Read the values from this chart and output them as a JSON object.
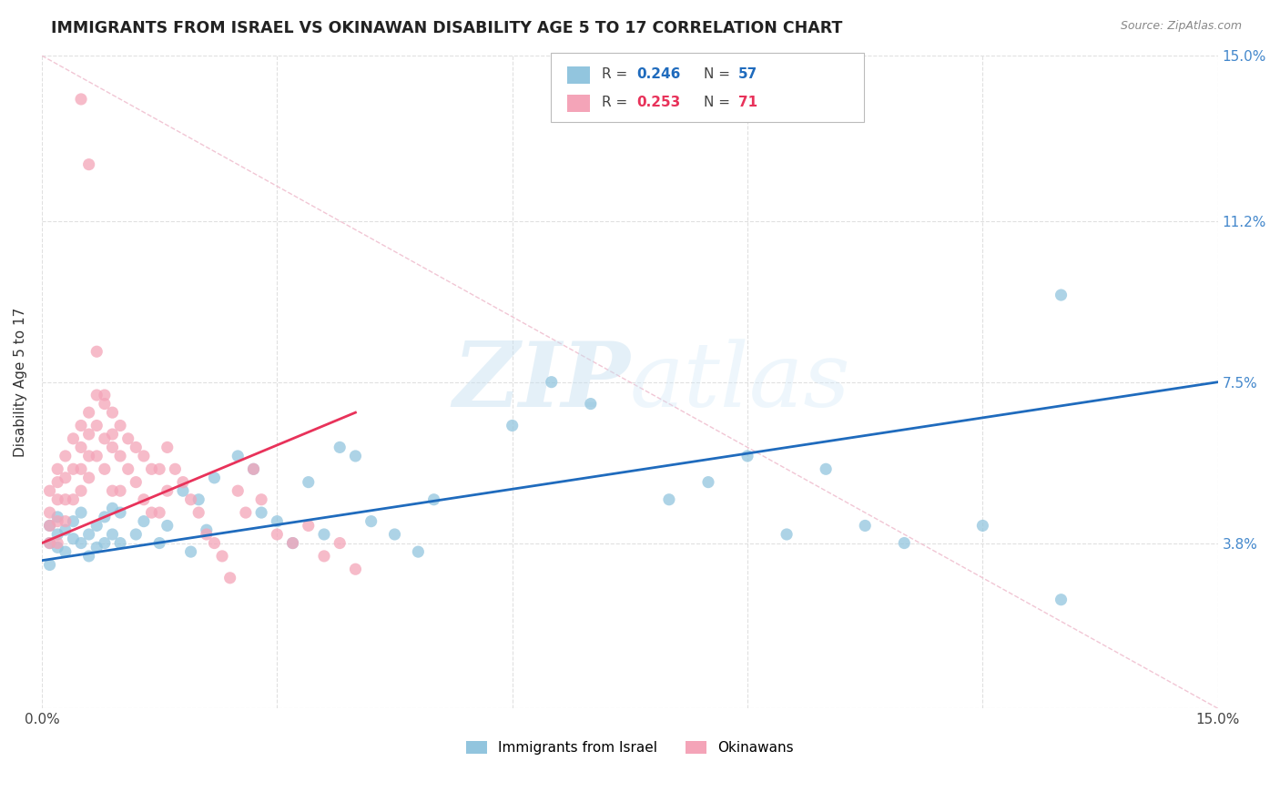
{
  "title": "IMMIGRANTS FROM ISRAEL VS OKINAWAN DISABILITY AGE 5 TO 17 CORRELATION CHART",
  "source": "Source: ZipAtlas.com",
  "ylabel": "Disability Age 5 to 17",
  "xlim": [
    0.0,
    0.15
  ],
  "ylim": [
    0.0,
    0.15
  ],
  "xtick_vals": [
    0.0,
    0.03,
    0.06,
    0.09,
    0.12,
    0.15
  ],
  "ytick_vals": [
    0.0,
    0.038,
    0.075,
    0.112,
    0.15
  ],
  "legend_r1": "R = 0.246",
  "legend_n1": "N = 57",
  "legend_r2": "R = 0.253",
  "legend_n2": "N = 71",
  "color_israel": "#92c5de",
  "color_okinawan": "#f4a4b8",
  "trendline_israel_color": "#1f6bbd",
  "trendline_okinawan_color": "#e8325a",
  "watermark_zip": "ZIP",
  "watermark_atlas": "atlas",
  "background_color": "#ffffff",
  "grid_color": "#e0e0e0",
  "diag_color": "#f0c0d0",
  "israel_trend_x": [
    0.0,
    0.15
  ],
  "israel_trend_y": [
    0.034,
    0.075
  ],
  "okinawan_trend_x": [
    0.0,
    0.04
  ],
  "okinawan_trend_y": [
    0.038,
    0.068
  ],
  "israel_x": [
    0.001,
    0.001,
    0.001,
    0.002,
    0.002,
    0.002,
    0.003,
    0.003,
    0.004,
    0.004,
    0.005,
    0.005,
    0.006,
    0.006,
    0.007,
    0.007,
    0.008,
    0.008,
    0.009,
    0.009,
    0.01,
    0.01,
    0.012,
    0.013,
    0.015,
    0.016,
    0.018,
    0.019,
    0.02,
    0.021,
    0.022,
    0.025,
    0.027,
    0.028,
    0.03,
    0.032,
    0.034,
    0.036,
    0.038,
    0.04,
    0.042,
    0.045,
    0.048,
    0.05,
    0.06,
    0.065,
    0.07,
    0.08,
    0.085,
    0.09,
    0.095,
    0.1,
    0.105,
    0.11,
    0.12,
    0.13,
    0.13
  ],
  "israel_y": [
    0.042,
    0.038,
    0.033,
    0.04,
    0.044,
    0.037,
    0.041,
    0.036,
    0.039,
    0.043,
    0.038,
    0.045,
    0.04,
    0.035,
    0.042,
    0.037,
    0.044,
    0.038,
    0.046,
    0.04,
    0.038,
    0.045,
    0.04,
    0.043,
    0.038,
    0.042,
    0.05,
    0.036,
    0.048,
    0.041,
    0.053,
    0.058,
    0.055,
    0.045,
    0.043,
    0.038,
    0.052,
    0.04,
    0.06,
    0.058,
    0.043,
    0.04,
    0.036,
    0.048,
    0.065,
    0.075,
    0.07,
    0.048,
    0.052,
    0.058,
    0.04,
    0.055,
    0.042,
    0.038,
    0.042,
    0.095,
    0.025
  ],
  "okinawan_x": [
    0.001,
    0.001,
    0.001,
    0.001,
    0.002,
    0.002,
    0.002,
    0.002,
    0.002,
    0.003,
    0.003,
    0.003,
    0.003,
    0.004,
    0.004,
    0.004,
    0.005,
    0.005,
    0.005,
    0.005,
    0.006,
    0.006,
    0.006,
    0.006,
    0.007,
    0.007,
    0.007,
    0.008,
    0.008,
    0.008,
    0.009,
    0.009,
    0.009,
    0.01,
    0.01,
    0.01,
    0.011,
    0.011,
    0.012,
    0.012,
    0.013,
    0.013,
    0.014,
    0.014,
    0.015,
    0.015,
    0.016,
    0.016,
    0.017,
    0.018,
    0.019,
    0.02,
    0.021,
    0.022,
    0.023,
    0.024,
    0.025,
    0.026,
    0.027,
    0.028,
    0.03,
    0.032,
    0.034,
    0.036,
    0.038,
    0.04,
    0.005,
    0.006,
    0.007,
    0.008,
    0.009
  ],
  "okinawan_y": [
    0.05,
    0.045,
    0.042,
    0.038,
    0.055,
    0.052,
    0.048,
    0.043,
    0.038,
    0.058,
    0.053,
    0.048,
    0.043,
    0.062,
    0.055,
    0.048,
    0.065,
    0.06,
    0.055,
    0.05,
    0.068,
    0.063,
    0.058,
    0.053,
    0.072,
    0.065,
    0.058,
    0.07,
    0.062,
    0.055,
    0.068,
    0.06,
    0.05,
    0.065,
    0.058,
    0.05,
    0.062,
    0.055,
    0.06,
    0.052,
    0.058,
    0.048,
    0.055,
    0.045,
    0.055,
    0.045,
    0.06,
    0.05,
    0.055,
    0.052,
    0.048,
    0.045,
    0.04,
    0.038,
    0.035,
    0.03,
    0.05,
    0.045,
    0.055,
    0.048,
    0.04,
    0.038,
    0.042,
    0.035,
    0.038,
    0.032,
    0.14,
    0.125,
    0.082,
    0.072,
    0.063
  ]
}
